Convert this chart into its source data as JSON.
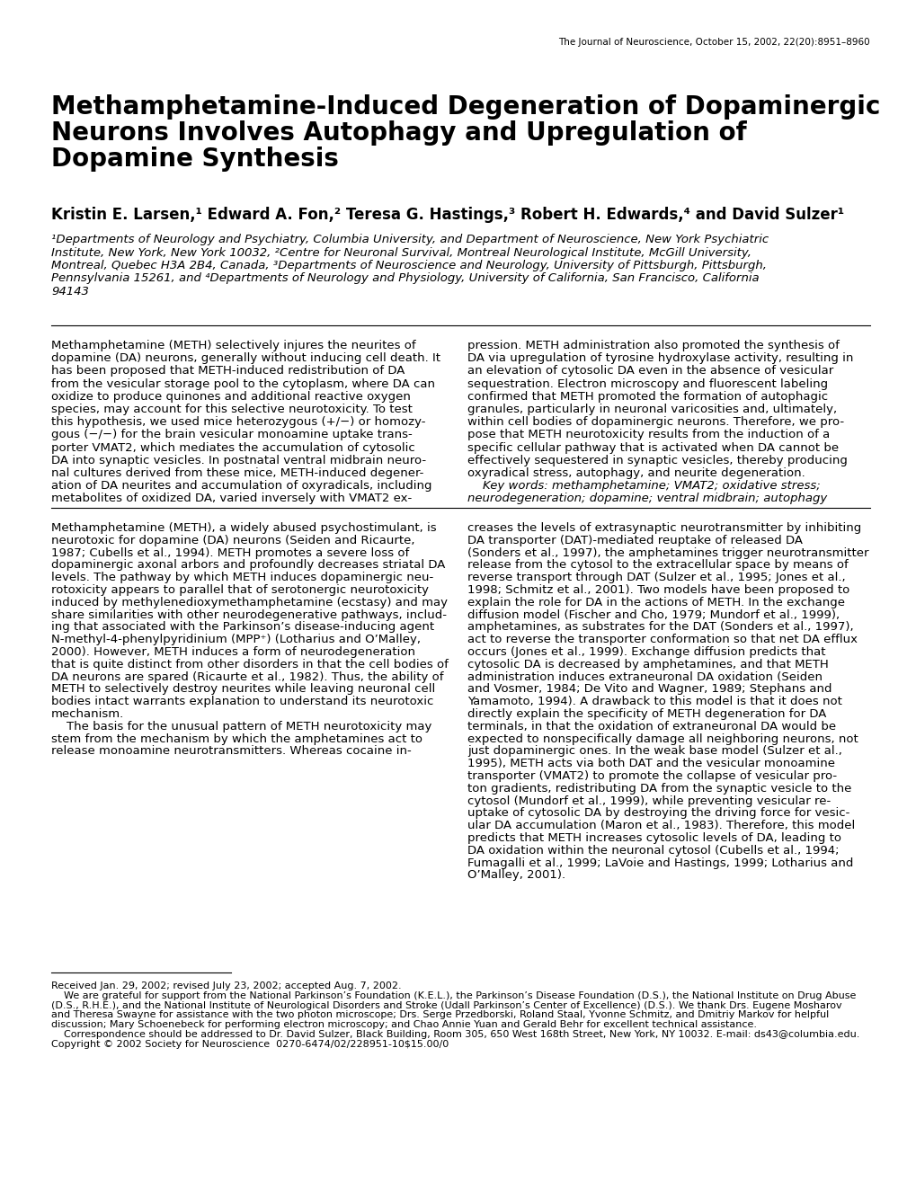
{
  "journal_header": "The Journal of Neuroscience, October 15, 2002, 22(20):8951–8960",
  "title_line1": "Methamphetamine-Induced Degeneration of Dopaminergic",
  "title_line2": "Neurons Involves Autophagy and Upregulation of",
  "title_line3": "Dopamine Synthesis",
  "authors": "Kristin E. Larsen,¹ Edward A. Fon,² Teresa G. Hastings,³ Robert H. Edwards,⁴ and David Sulzer¹",
  "affil1": "¹Departments of Neurology and Psychiatry, Columbia University, and Department of Neuroscience, New York Psychiatric",
  "affil2": "Institute, New York, New York 10032, ²Centre for Neuronal Survival, Montreal Neurological Institute, McGill University,",
  "affil3": "Montreal, Quebec H3A 2B4, Canada, ³Departments of Neuroscience and Neurology, University of Pittsburgh, Pittsburgh,",
  "affil4": "Pennsylvania 15261, and ⁴Departments of Neurology and Physiology, University of California, San Francisco, California",
  "affil5": "94143",
  "abstract_left_lines": [
    "Methamphetamine (METH) selectively injures the neurites of",
    "dopamine (DA) neurons, generally without inducing cell death. It",
    "has been proposed that METH-induced redistribution of DA",
    "from the vesicular storage pool to the cytoplasm, where DA can",
    "oxidize to produce quinones and additional reactive oxygen",
    "species, may account for this selective neurotoxicity. To test",
    "this hypothesis, we used mice heterozygous (+/−) or homozy-",
    "gous (−/−) for the brain vesicular monoamine uptake trans-",
    "porter VMAT2, which mediates the accumulation of cytosolic",
    "DA into synaptic vesicles. In postnatal ventral midbrain neuro-",
    "nal cultures derived from these mice, METH-induced degener-",
    "ation of DA neurites and accumulation of oxyradicals, including",
    "metabolites of oxidized DA, varied inversely with VMAT2 ex-"
  ],
  "abstract_right_lines": [
    "pression. METH administration also promoted the synthesis of",
    "DA via upregulation of tyrosine hydroxylase activity, resulting in",
    "an elevation of cytosolic DA even in the absence of vesicular",
    "sequestration. Electron microscopy and fluorescent labeling",
    "confirmed that METH promoted the formation of autophagic",
    "granules, particularly in neuronal varicosities and, ultimately,",
    "within cell bodies of dopaminergic neurons. Therefore, we pro-",
    "pose that METH neurotoxicity results from the induction of a",
    "specific cellular pathway that is activated when DA cannot be",
    "effectively sequestered in synaptic vesicles, thereby producing",
    "oxyradical stress, autophagy, and neurite degeneration.",
    "    Key words: methamphetamine; VMAT2; oxidative stress;",
    "neurodegeneration; dopamine; ventral midbrain; autophagy"
  ],
  "body_left_lines": [
    "Methamphetamine (METH), a widely abused psychostimulant, is",
    "neurotoxic for dopamine (DA) neurons (Seiden and Ricaurte,",
    "1987; Cubells et al., 1994). METH promotes a severe loss of",
    "dopaminergic axonal arbors and profoundly decreases striatal DA",
    "levels. The pathway by which METH induces dopaminergic neu-",
    "rotoxicity appears to parallel that of serotonergic neurotoxicity",
    "induced by methylenedioxymethamphetamine (ecstasy) and may",
    "share similarities with other neurodegenerative pathways, includ-",
    "ing that associated with the Parkinson’s disease-inducing agent",
    "N-methyl-4-phenylpyridinium (MPP⁺) (Lotharius and O’Malley,",
    "2000). However, METH induces a form of neurodegeneration",
    "that is quite distinct from other disorders in that the cell bodies of",
    "DA neurons are spared (Ricaurte et al., 1982). Thus, the ability of",
    "METH to selectively destroy neurites while leaving neuronal cell",
    "bodies intact warrants explanation to understand its neurotoxic",
    "mechanism.",
    "    The basis for the unusual pattern of METH neurotoxicity may",
    "stem from the mechanism by which the amphetamines act to",
    "release monoamine neurotransmitters. Whereas cocaine in-"
  ],
  "body_right_lines": [
    "creases the levels of extrasynaptic neurotransmitter by inhibiting",
    "DA transporter (DAT)-mediated reuptake of released DA",
    "(Sonders et al., 1997), the amphetamines trigger neurotransmitter",
    "release from the cytosol to the extracellular space by means of",
    "reverse transport through DAT (Sulzer et al., 1995; Jones et al.,",
    "1998; Schmitz et al., 2001). Two models have been proposed to",
    "explain the role for DA in the actions of METH. In the exchange",
    "diffusion model (Fischer and Cho, 1979; Mundorf et al., 1999),",
    "amphetamines, as substrates for the DAT (Sonders et al., 1997),",
    "act to reverse the transporter conformation so that net DA efflux",
    "occurs (Jones et al., 1999). Exchange diffusion predicts that",
    "cytosolic DA is decreased by amphetamines, and that METH",
    "administration induces extraneuronal DA oxidation (Seiden",
    "and Vosmer, 1984; De Vito and Wagner, 1989; Stephans and",
    "Yamamoto, 1994). A drawback to this model is that it does not",
    "directly explain the specificity of METH degeneration for DA",
    "terminals, in that the oxidation of extraneuronal DA would be",
    "expected to nonspecifically damage all neighboring neurons, not",
    "just dopaminergic ones. In the weak base model (Sulzer et al.,",
    "1995), METH acts via both DAT and the vesicular monoamine",
    "transporter (VMAT2) to promote the collapse of vesicular pro-",
    "ton gradients, redistributing DA from the synaptic vesicle to the",
    "cytosol (Mundorf et al., 1999), while preventing vesicular re-",
    "uptake of cytosolic DA by destroying the driving force for vesic-",
    "ular DA accumulation (Maron et al., 1983). Therefore, this model",
    "predicts that METH increases cytosolic levels of DA, leading to",
    "DA oxidation within the neuronal cytosol (Cubells et al., 1994;",
    "Fumagalli et al., 1999; LaVoie and Hastings, 1999; Lotharius and",
    "O’Malley, 2001)."
  ],
  "footnote_lines": [
    "Received Jan. 29, 2002; revised July 23, 2002; accepted Aug. 7, 2002.",
    "    We are grateful for support from the National Parkinson’s Foundation (K.E.L.), the Parkinson’s Disease Foundation (D.S.), the National Institute on Drug Abuse",
    "(D.S., R.H.E.), and the National Institute of Neurological Disorders and Stroke (Udall Parkinson’s Center of Excellence) (D.S.). We thank Drs. Eugene Mosharov",
    "and Theresa Swayne for assistance with the two photon microscope; Drs. Serge Przedborski, Roland Staal, Yvonne Schmitz, and Dmitriy Markov for helpful",
    "discussion; Mary Schoenebeck for performing electron microscopy; and Chao Annie Yuan and Gerald Behr for excellent technical assistance.",
    "    Correspondence should be addressed to Dr. David Sulzer, Black Building, Room 305, 650 West 168th Street, New York, NY 10032. E-mail: ds43@columbia.edu.",
    "Copyright © 2002 Society for Neuroscience  0270-6474/02/228951-10$15.00/0"
  ],
  "bg_color": "#ffffff",
  "text_color": "#000000"
}
